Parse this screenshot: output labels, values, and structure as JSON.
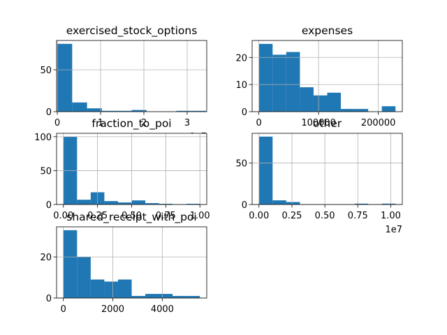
{
  "chart_data": [
    {
      "type": "histogram",
      "title": "exercised_stock_options",
      "color": "#1f77b4",
      "grid": true,
      "bins": [
        3285,
        3437795,
        6872305,
        10306815,
        13741325,
        17175835,
        20610345,
        24044855,
        27479364,
        30913874,
        34348384
      ],
      "values": [
        81,
        11,
        4,
        1,
        1,
        2,
        0,
        0,
        1,
        1
      ],
      "xlim": [
        -168440,
        34520109
      ],
      "ylim": [
        0,
        85
      ],
      "xticks": [
        {
          "value": 0,
          "label": "0"
        },
        {
          "value": 10000000,
          "label": "1"
        },
        {
          "value": 20000000,
          "label": "2"
        },
        {
          "value": 30000000,
          "label": "3"
        }
      ],
      "x_offset_label": "1e7",
      "yticks": [
        0,
        50
      ]
    },
    {
      "type": "histogram",
      "title": "expenses",
      "color": "#1f77b4",
      "grid": true,
      "bins": [
        148,
        23010,
        45871,
        68733,
        91594,
        114456,
        137317,
        160178,
        183040,
        205901,
        228763
      ],
      "values": [
        25,
        21,
        22,
        9,
        6,
        7,
        1,
        1,
        0,
        2
      ],
      "xlim": [
        -11283,
        240194
      ],
      "ylim": [
        0,
        26.25
      ],
      "xticks": [
        0,
        100000,
        200000
      ],
      "yticks": [
        0,
        10,
        20
      ]
    },
    {
      "type": "histogram",
      "title": "fraction_to_poi",
      "color": "#1f77b4",
      "grid": true,
      "bins": [
        0,
        0.1,
        0.2,
        0.3,
        0.4,
        0.5,
        0.6,
        0.7,
        0.8,
        0.9,
        1
      ],
      "values": [
        100,
        7,
        18,
        5,
        3,
        6,
        2,
        1,
        0,
        1
      ],
      "xlim": [
        -0.05,
        1.05
      ],
      "ylim": [
        0,
        105
      ],
      "xticks": [
        {
          "value": 0,
          "label": "0.00"
        },
        {
          "value": 0.25,
          "label": "0.25"
        },
        {
          "value": 0.5,
          "label": "0.50"
        },
        {
          "value": 0.75,
          "label": "0.75"
        },
        {
          "value": 1,
          "label": "1.00"
        }
      ],
      "yticks": [
        0,
        50,
        100
      ]
    },
    {
      "type": "histogram",
      "title": "other",
      "color": "#1f77b4",
      "grid": true,
      "bins": [
        2,
        1035975,
        2071948,
        3107920,
        4143893,
        5179866,
        6215839,
        7251812,
        8287784,
        9323757,
        10359729
      ],
      "values": [
        82,
        5,
        3,
        0,
        0,
        0,
        0,
        1,
        0,
        1
      ],
      "xlim": [
        -517984,
        10877715
      ],
      "ylim": [
        0,
        86
      ],
      "xticks": [
        {
          "value": 0,
          "label": "0.00"
        },
        {
          "value": 2500000,
          "label": "0.25"
        },
        {
          "value": 5000000,
          "label": "0.50"
        },
        {
          "value": 7500000,
          "label": "0.75"
        },
        {
          "value": 10000000,
          "label": "1.00"
        }
      ],
      "x_offset_label": "1e7",
      "yticks": [
        0,
        50
      ]
    },
    {
      "type": "histogram",
      "title": "shared_receipt_with_poi",
      "color": "#1f77b4",
      "grid": true,
      "bins": [
        2,
        554,
        1106,
        1658,
        2210,
        2762,
        3313,
        3865,
        4417,
        4969,
        5521
      ],
      "values": [
        33,
        20,
        9,
        8,
        9,
        1,
        2,
        2,
        1,
        1
      ],
      "xlim": [
        -274,
        5797
      ],
      "ylim": [
        0,
        34.65
      ],
      "xticks": [
        0,
        2000,
        4000
      ],
      "yticks": [
        0,
        20
      ]
    }
  ]
}
